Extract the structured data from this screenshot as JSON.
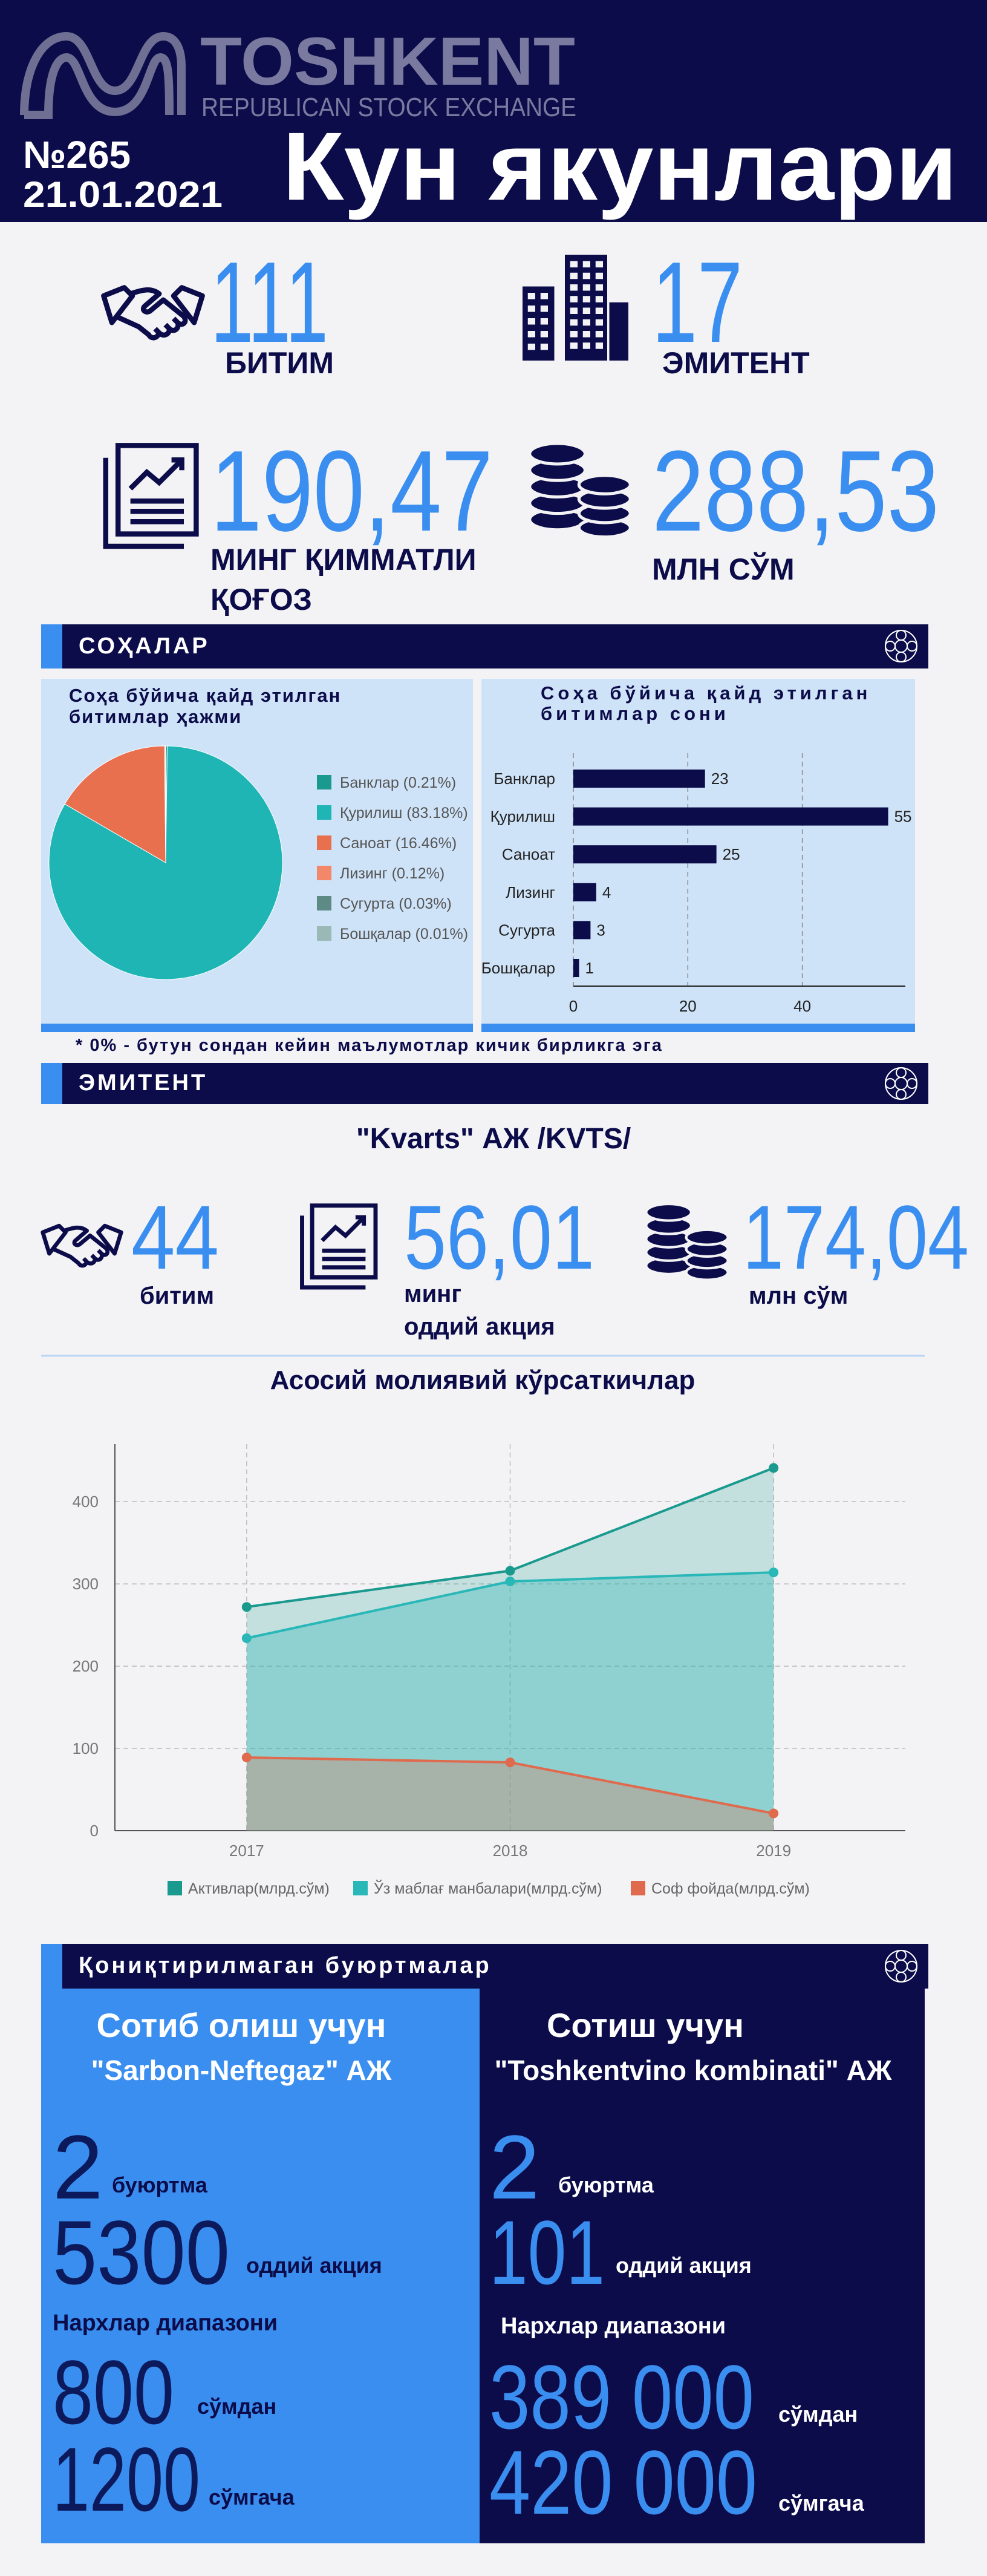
{
  "header": {
    "logo_title": "TOSHKENT",
    "logo_subtitle": "REPUBLICAN STOCK EXCHANGE",
    "issue": "№265",
    "date": "21.01.2021",
    "title": "Кун якунлари"
  },
  "summary": {
    "deals": {
      "value": "111",
      "label": "БИТИМ"
    },
    "issuers": {
      "value": "17",
      "label": "ЭМИТЕНТ"
    },
    "securities": {
      "value": "190,47",
      "label_lines": [
        "МИНГ ҚИММАТЛИ",
        "ҚОҒОЗ"
      ]
    },
    "volume": {
      "value": "288,53",
      "label": "МЛН СЎМ"
    }
  },
  "sectors": {
    "heading": "СОҲАЛАР",
    "pie": {
      "type": "pie",
      "title_lines": [
        "Соҳа бўйича қайд этилган",
        "битимлар ҳажми"
      ],
      "categories": [
        "Банклар (0.21%)",
        "Қурилиш (83.18%)",
        "Саноат (16.46%)",
        "Лизинг (0.12%)",
        "Сугурта (0.03%)",
        "Бошқалар (0.01%)"
      ],
      "values": [
        0.21,
        83.18,
        16.46,
        0.12,
        0.03,
        0.01
      ],
      "colors": [
        "#1a9a8e",
        "#1fb5b5",
        "#e8704f",
        "#f2876a",
        "#5e8a86",
        "#9ab8b6"
      ]
    },
    "bar": {
      "type": "bar",
      "orientation": "horizontal",
      "title_lines": [
        "Соҳа бўйича қайд этилган",
        "битимлар сони"
      ],
      "categories": [
        "Банклар",
        "Қурилиш",
        "Саноат",
        "Лизинг",
        "Сугурта",
        "Бошқалар"
      ],
      "values": [
        23,
        55,
        25,
        4,
        3,
        1
      ],
      "color": "#0c0c4a",
      "xlim": [
        0,
        58
      ],
      "xticks": [
        0,
        20,
        40
      ],
      "grid": true
    },
    "footnote": "* 0% - бутун сондан кейин маълумотлар кичик бирликга эга"
  },
  "issuer": {
    "heading": "ЭМИТЕНТ",
    "company": "\"Kvarts\" АЖ /KVTS/",
    "deals": {
      "value": "44",
      "label": "битим"
    },
    "securities": {
      "value": "56,01",
      "label_lines": [
        "минг",
        "оддий акция"
      ]
    },
    "volume": {
      "value": "174,04",
      "label": "млн сўм"
    },
    "chart": {
      "type": "area",
      "title": "Асосий молиявий кўрсаткичлар",
      "categories": [
        "2017",
        "2018",
        "2019"
      ],
      "series": [
        {
          "name": "Активлар(млрд.сўм)",
          "color": "#1a9a8e",
          "values": [
            272,
            316,
            441
          ]
        },
        {
          "name": "Ўз маблағ манбалари(млрд.сўм)",
          "color": "#2ab7b8",
          "values": [
            234,
            303,
            314
          ]
        },
        {
          "name": "Соф фойда(млрд.сўм)",
          "color": "#e06a4e",
          "values": [
            89,
            83,
            21
          ]
        }
      ],
      "ylim": [
        0,
        470
      ],
      "yticks": [
        0,
        100,
        200,
        300,
        400
      ],
      "grid": true
    }
  },
  "orders": {
    "heading": "Қониқтирилмаган буюртмалар",
    "buy": {
      "title": "Сотиб олиш учун",
      "company": "\"Sarbon-Neftegaz\" АЖ",
      "orders": "2",
      "orders_label": "буюртма",
      "shares": "5300",
      "shares_label": "оддий акция",
      "range_label": "Нархлар диапазони",
      "price_from": "800",
      "from_label": "сўмдан",
      "price_to": "1200",
      "to_label": "сўмгача"
    },
    "sell": {
      "title": "Сотиш учун",
      "company": "\"Toshkentvino kombinati\" АЖ",
      "orders": "2",
      "orders_label": "буюртма",
      "shares": "101",
      "shares_label": "оддий акция",
      "range_label": "Нархлар диапазони",
      "price_from": "389 000",
      "from_label": "сўмдан",
      "price_to": "420 000",
      "to_label": "сўмгача"
    }
  }
}
